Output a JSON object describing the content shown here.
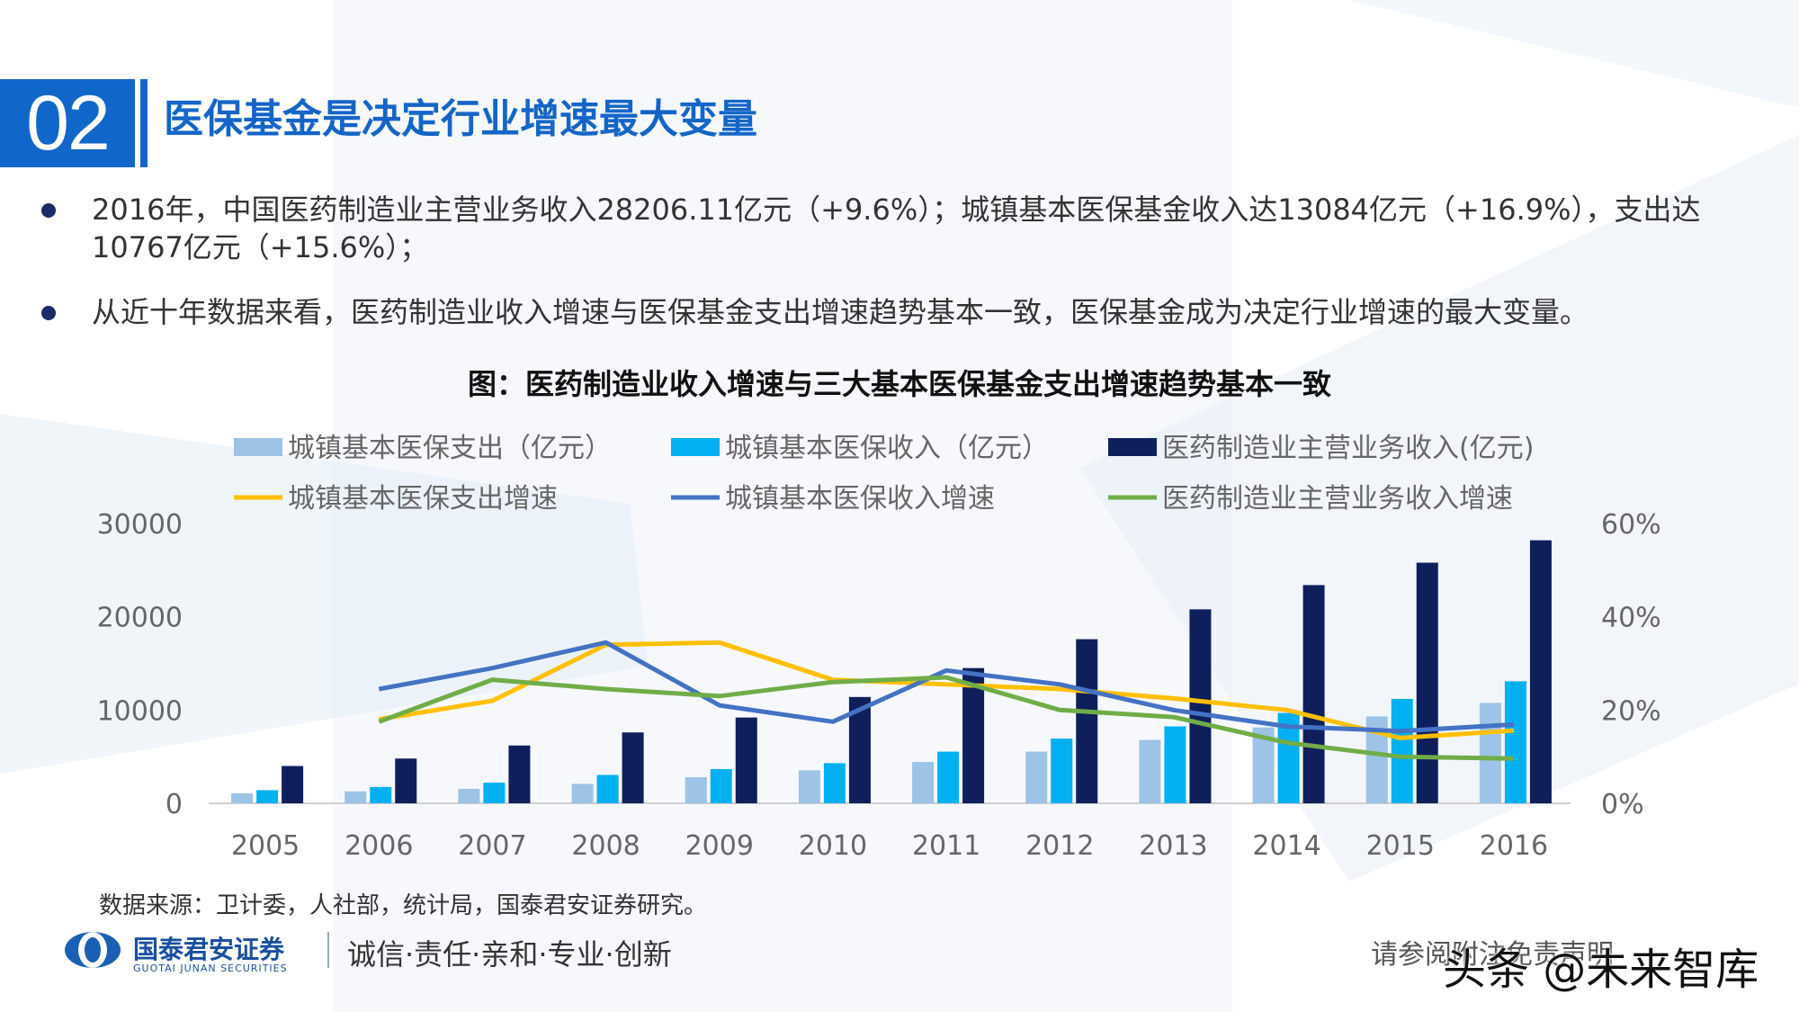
{
  "header": {
    "number": "02",
    "title": "医保基金是决定行业增速最大变量"
  },
  "bullets": [
    "2016年，中国医药制造业主营业务收入28206.11亿元（+9.6%）；城镇基本医保基金收入达13084亿元（+16.9%），支出达10767亿元（+15.6%）；",
    "从近十年数据来看，医药制造业收入增速与医保基金支出增速趋势基本一致，医保基金成为决定行业增速的最大变量。"
  ],
  "chart_title": "图：医药制造业收入增速与三大基本医保基金支出增速趋势基本一致",
  "chart_data": {
    "type": "bar",
    "categories": [
      "2005",
      "2006",
      "2007",
      "2008",
      "2009",
      "2010",
      "2011",
      "2012",
      "2013",
      "2014",
      "2015",
      "2016"
    ],
    "y_left": {
      "min": 0,
      "max": 30000,
      "ticks": [
        "0",
        "10000",
        "20000",
        "30000"
      ]
    },
    "y_right": {
      "min": 0,
      "max": 0.6,
      "ticks": [
        "0%",
        "20%",
        "40%",
        "60%"
      ]
    },
    "bar_series": [
      {
        "name": "城镇基本医保支出（亿元）",
        "color": "#9dc3e6",
        "values": [
          1079,
          1277,
          1552,
          2084,
          2797,
          3538,
          4431,
          5544,
          6801,
          8134,
          9312,
          10767
        ]
      },
      {
        "name": "城镇基本医保收入（亿元）",
        "color": "#00b0f0",
        "values": [
          1405,
          1747,
          2214,
          3040,
          3672,
          4309,
          5539,
          6939,
          8248,
          9687,
          11193,
          13084
        ]
      },
      {
        "name": "医药制造业主营业务收入(亿元)",
        "color": "#0f1f5c",
        "values": [
          4000,
          4800,
          6200,
          7600,
          9200,
          11400,
          14500,
          17600,
          20800,
          23400,
          25800,
          28206
        ]
      }
    ],
    "line_series": [
      {
        "name": "城镇基本医保支出增速",
        "color": "#ffc000",
        "values": [
          null,
          0.18,
          0.22,
          0.34,
          0.345,
          0.265,
          0.255,
          0.245,
          0.225,
          0.2,
          0.14,
          0.156
        ]
      },
      {
        "name": "城镇基本医保收入增速",
        "color": "#4472c4",
        "values": [
          null,
          0.245,
          0.29,
          0.345,
          0.21,
          0.175,
          0.285,
          0.255,
          0.2,
          0.165,
          0.155,
          0.169
        ]
      },
      {
        "name": "医药制造业主营业务收入增速",
        "color": "#70ad47",
        "values": [
          null,
          0.175,
          0.265,
          0.245,
          0.23,
          0.26,
          0.27,
          0.2,
          0.185,
          0.13,
          0.1,
          0.096
        ]
      }
    ],
    "legend_position": "top"
  },
  "source": "数据来源：卫计委，人社部，统计局，国泰君安证券研究。",
  "footer": {
    "logo_cn": "国泰君安证券",
    "logo_en": "GUOTAI JUNAN SECURITIES",
    "slogan": "诚信·责任·亲和·专业·创新",
    "disclaimer": "请参阅附注免责声明",
    "watermark": "头条 @未来智库"
  }
}
